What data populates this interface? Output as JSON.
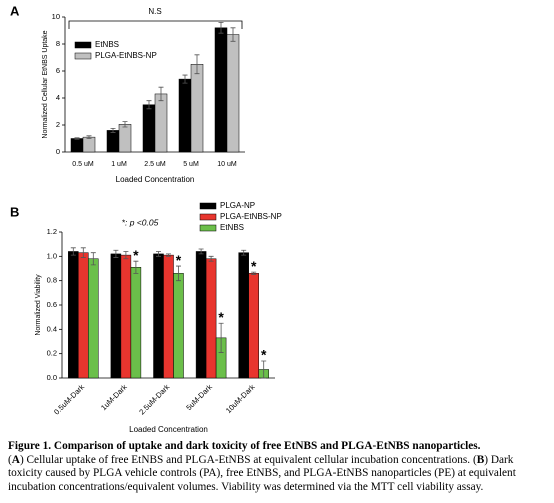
{
  "chart_data": [
    {
      "type": "bar",
      "panel_label": "A",
      "annotation": "N.S",
      "y_label": "Normalized Cellular EtNBS Uptake",
      "x_label": "Loaded Concentration",
      "categories": [
        "0.5 uM",
        "1 uM",
        "2.5 uM",
        "5 uM",
        "10 uM"
      ],
      "series": [
        {
          "name": "EtNBS",
          "color": "#000000",
          "values": [
            1.0,
            1.6,
            3.5,
            5.4,
            9.2
          ],
          "errors": [
            0.05,
            0.15,
            0.3,
            0.3,
            0.4
          ]
        },
        {
          "name": "PLGA-EtNBS-NP",
          "color": "#c0c0c0",
          "values": [
            1.1,
            2.05,
            4.3,
            6.5,
            8.7
          ],
          "errors": [
            0.1,
            0.2,
            0.5,
            0.7,
            0.5
          ]
        }
      ],
      "ylim": [
        0,
        10
      ],
      "yticks": [
        0,
        2,
        4,
        6,
        8,
        10
      ],
      "legend": "upper left"
    },
    {
      "type": "bar",
      "panel_label": "B",
      "annotation": "*: p <0.05",
      "y_label": "Normalized Viability",
      "x_label": "Loaded Concentration",
      "categories": [
        "0.5uM-Dark",
        "1uM-Dark",
        "2.5uM-Dark",
        "5uM-Dark",
        "10uM-Dark"
      ],
      "series": [
        {
          "name": "PLGA-NP",
          "color": "#000000",
          "values": [
            1.04,
            1.02,
            1.02,
            1.04,
            1.03
          ],
          "errors": [
            0.03,
            0.03,
            0.02,
            0.02,
            0.02
          ],
          "significance": [
            null,
            null,
            null,
            null,
            null
          ]
        },
        {
          "name": "PLGA-EtNBS-NP",
          "color": "#e8352e",
          "values": [
            1.03,
            1.01,
            1.01,
            0.98,
            0.86
          ],
          "errors": [
            0.04,
            0.03,
            0.01,
            0.02,
            0.01
          ],
          "significance": [
            null,
            null,
            null,
            null,
            "*"
          ]
        },
        {
          "name": "EtNBS",
          "color": "#6bbf4a",
          "values": [
            0.98,
            0.91,
            0.86,
            0.33,
            0.07
          ],
          "errors": [
            0.05,
            0.05,
            0.06,
            0.12,
            0.07
          ],
          "significance": [
            null,
            "*",
            "*",
            "*",
            "*"
          ]
        }
      ],
      "ylim": [
        0,
        1.2
      ],
      "yticks": [
        {
          "value": 0,
          "label": "0.0"
        },
        0.2,
        0.4,
        0.6,
        0.8,
        {
          "value": 1,
          "label": "1.0"
        },
        1.2
      ],
      "legend": "upper right"
    }
  ],
  "caption": {
    "title": "Figure 1.  Comparison of uptake and dark toxicity of free EtNBS and PLGA-EtNBS nanoparticles.",
    "body": [
      "(",
      "A",
      ") Cellular uptake of free EtNBS and PLGA-EtNBS at equivalent cellular incubation concentrations. (",
      "B",
      ") Dark toxicity caused by PLGA vehicle controls (PA), free EtNBS, and PLGA-EtNBS nanoparticles (PE) at equivalent incubation concentrations/equivalent volumes. Viability was determined via the MTT cell viability assay."
    ]
  }
}
